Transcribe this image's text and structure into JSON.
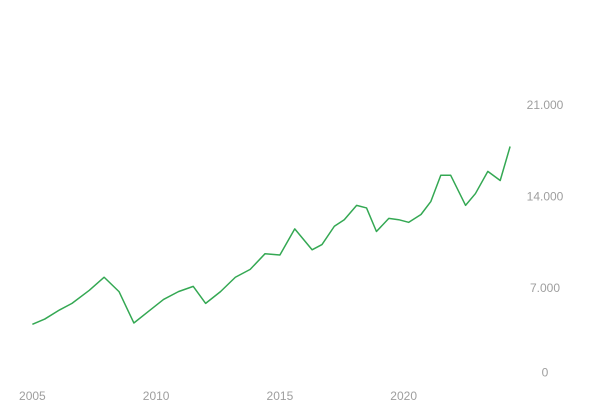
{
  "chart_data": {
    "type": "line",
    "x": [
      2005.0,
      2005.5,
      2006.1,
      2006.6,
      2007.3,
      2007.9,
      2008.5,
      2009.1,
      2009.7,
      2010.3,
      2010.9,
      2011.5,
      2012.0,
      2012.6,
      2013.2,
      2013.8,
      2014.4,
      2015.0,
      2015.6,
      2016.3,
      2016.7,
      2017.2,
      2017.6,
      2018.1,
      2018.5,
      2018.9,
      2019.4,
      2019.8,
      2020.2,
      2020.7,
      2021.1,
      2021.5,
      2021.9,
      2022.5,
      2022.9,
      2023.4,
      2023.9,
      2024.3
    ],
    "series": [
      {
        "color": "#34a853",
        "values": [
          4300,
          4700,
          5400,
          5900,
          6900,
          7900,
          6800,
          4400,
          5300,
          6200,
          6800,
          7200,
          5900,
          6800,
          7900,
          8500,
          9700,
          9600,
          11600,
          10000,
          10400,
          11800,
          12300,
          13400,
          13200,
          11400,
          12400,
          12300,
          12100,
          12700,
          13700,
          15700,
          15700,
          13400,
          14300,
          16000,
          15300,
          17900
        ]
      }
    ],
    "xlim": [
      2004.5,
      2024.7
    ],
    "xticks": [
      2005,
      2010,
      2015,
      2020
    ],
    "ylim": [
      0,
      25000
    ],
    "yticks": [
      0,
      {
        "value": 7000,
        "label": "7.000"
      },
      {
        "value": 14000,
        "label": "14.000"
      },
      {
        "value": 21000,
        "label": "21.000"
      }
    ]
  }
}
